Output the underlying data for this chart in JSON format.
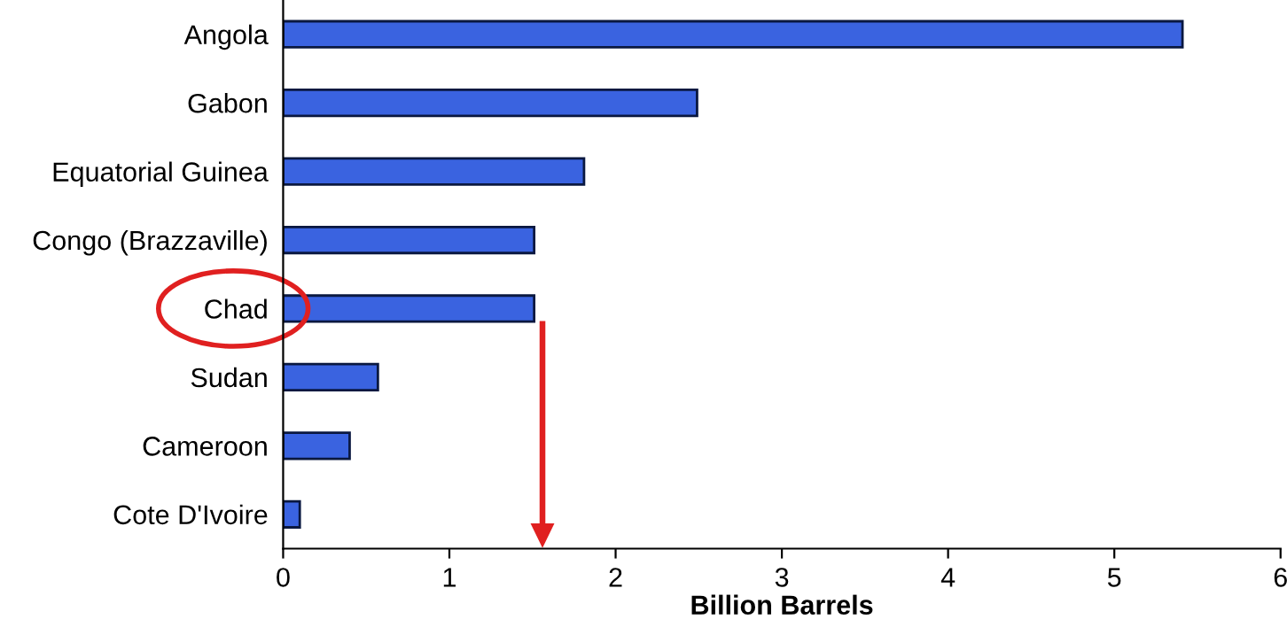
{
  "chart_data": {
    "type": "bar",
    "orientation": "horizontal",
    "xlabel": "Billion Barrels",
    "categories": [
      "Angola",
      "Gabon",
      "Equatorial Guinea",
      "Congo (Brazzaville)",
      "Chad",
      "Sudan",
      "Cameroon",
      "Cote D'Ivoire"
    ],
    "values": [
      5.41,
      2.49,
      1.81,
      1.51,
      1.51,
      0.57,
      0.4,
      0.1
    ],
    "color": "#3a63e0",
    "xlim": [
      0,
      6
    ],
    "xticks": [
      0,
      1,
      2,
      3,
      4,
      5,
      6
    ],
    "grid": false,
    "legend": false
  }
}
